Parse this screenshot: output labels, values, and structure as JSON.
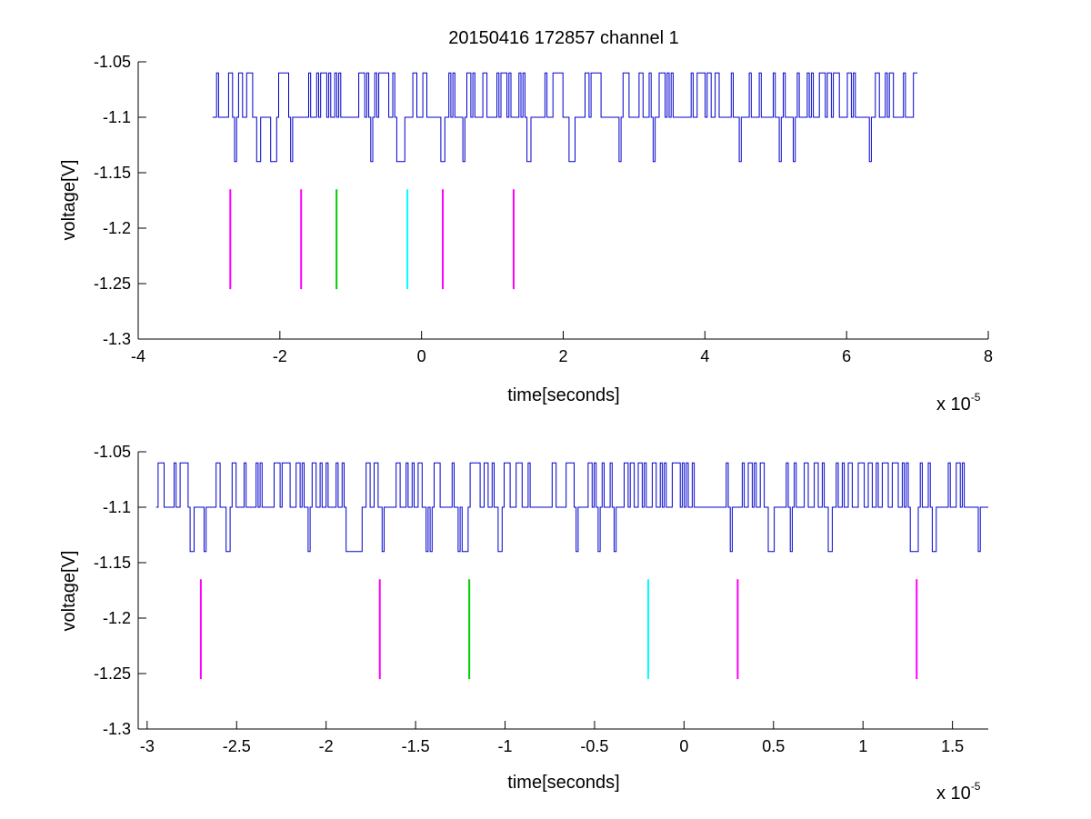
{
  "title": "20150416 172857 channel 1",
  "chart_data": [
    {
      "type": "line",
      "xlabel": "time[seconds]",
      "ylabel": "voltage[V]",
      "x_exponent_label": "x 10",
      "x_exponent": "-5",
      "xlim": [
        -4,
        8
      ],
      "ylim": [
        -1.3,
        -1.05
      ],
      "xticks": [
        -4,
        -2,
        0,
        2,
        4,
        6,
        8
      ],
      "xtick_labels": [
        "-4",
        "-2",
        "0",
        "2",
        "4",
        "6",
        "8"
      ],
      "yticks": [
        -1.3,
        -1.25,
        -1.2,
        -1.15,
        -1.1,
        -1.05
      ],
      "ytick_labels": [
        "-1.3",
        "-1.25",
        "-1.2",
        "-1.15",
        "-1.1",
        "-1.05"
      ],
      "grid": false,
      "signal": {
        "color": "#0000cc",
        "x_start": -2.95,
        "x_end": 7.0,
        "levels": [
          -1.06,
          -1.1,
          -1.14
        ]
      },
      "markers": [
        {
          "x": -2.7,
          "y_range": [
            -1.255,
            -1.165
          ],
          "color": "#ff00ff"
        },
        {
          "x": -1.7,
          "y_range": [
            -1.255,
            -1.165
          ],
          "color": "#ff00ff"
        },
        {
          "x": -1.2,
          "y_range": [
            -1.255,
            -1.165
          ],
          "color": "#00cc00"
        },
        {
          "x": -0.2,
          "y_range": [
            -1.255,
            -1.165
          ],
          "color": "#00ffff"
        },
        {
          "x": 0.3,
          "y_range": [
            -1.255,
            -1.165
          ],
          "color": "#ff00ff"
        },
        {
          "x": 1.3,
          "y_range": [
            -1.255,
            -1.165
          ],
          "color": "#ff00ff"
        }
      ]
    },
    {
      "type": "line",
      "xlabel": "time[seconds]",
      "ylabel": "voltage[V]",
      "x_exponent_label": "x 10",
      "x_exponent": "-5",
      "xlim": [
        -3.05,
        1.7
      ],
      "ylim": [
        -1.3,
        -1.05
      ],
      "xticks": [
        -3,
        -2.5,
        -2,
        -1.5,
        -1,
        -0.5,
        0,
        0.5,
        1,
        1.5
      ],
      "xtick_labels": [
        "-3",
        "-2.5",
        "-2",
        "-1.5",
        "-1",
        "-0.5",
        "0",
        "0.5",
        "1",
        "1.5"
      ],
      "yticks": [
        -1.3,
        -1.25,
        -1.2,
        -1.15,
        -1.1,
        -1.05
      ],
      "ytick_labels": [
        "-1.3",
        "-1.25",
        "-1.2",
        "-1.15",
        "-1.1",
        "-1.05"
      ],
      "grid": false,
      "signal": {
        "color": "#0000cc",
        "x_start": -2.95,
        "x_end": 1.7,
        "levels": [
          -1.06,
          -1.1,
          -1.14
        ]
      },
      "markers": [
        {
          "x": -2.7,
          "y_range": [
            -1.255,
            -1.165
          ],
          "color": "#ff00ff"
        },
        {
          "x": -1.7,
          "y_range": [
            -1.255,
            -1.165
          ],
          "color": "#ff00ff"
        },
        {
          "x": -1.2,
          "y_range": [
            -1.255,
            -1.165
          ],
          "color": "#00cc00"
        },
        {
          "x": -0.2,
          "y_range": [
            -1.255,
            -1.165
          ],
          "color": "#00ffff"
        },
        {
          "x": 0.3,
          "y_range": [
            -1.255,
            -1.165
          ],
          "color": "#ff00ff"
        },
        {
          "x": 1.3,
          "y_range": [
            -1.255,
            -1.165
          ],
          "color": "#ff00ff"
        }
      ]
    }
  ]
}
